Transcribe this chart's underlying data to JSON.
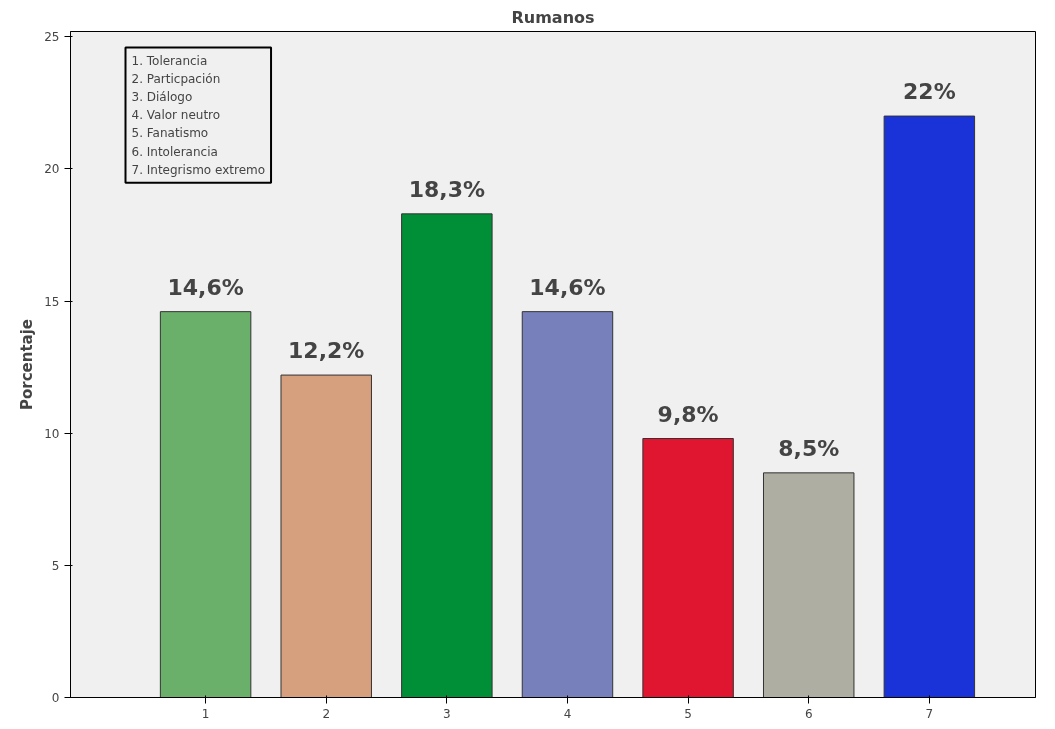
{
  "chart_data": {
    "type": "bar",
    "title": "Rumanos",
    "ylabel": "Porcentaje",
    "categories": [
      "1",
      "2",
      "3",
      "4",
      "5",
      "6",
      "7"
    ],
    "values": [
      14.6,
      12.2,
      18.3,
      14.6,
      9.8,
      8.5,
      22
    ],
    "colors": [
      "#6ab06a",
      "#d6a07e",
      "#008f36",
      "#7880bc",
      "#e01530",
      "#aeaea2",
      "#1a33d9"
    ],
    "value_labels": [
      "14,6%",
      "12,2%",
      "18,3%",
      "14,6%",
      "9,8%",
      "8,5%",
      "22%"
    ],
    "ylim": [
      0,
      25.2
    ],
    "yticks": [
      0,
      5,
      10,
      15,
      20,
      25
    ],
    "grid": false,
    "annotations": [
      "1. Tolerancia",
      "2. Particpación",
      "3. Diálogo",
      "4. Valor neutro",
      "5. Fanatismo",
      "6. Intolerancia",
      "7. Integrismo extremo"
    ]
  }
}
